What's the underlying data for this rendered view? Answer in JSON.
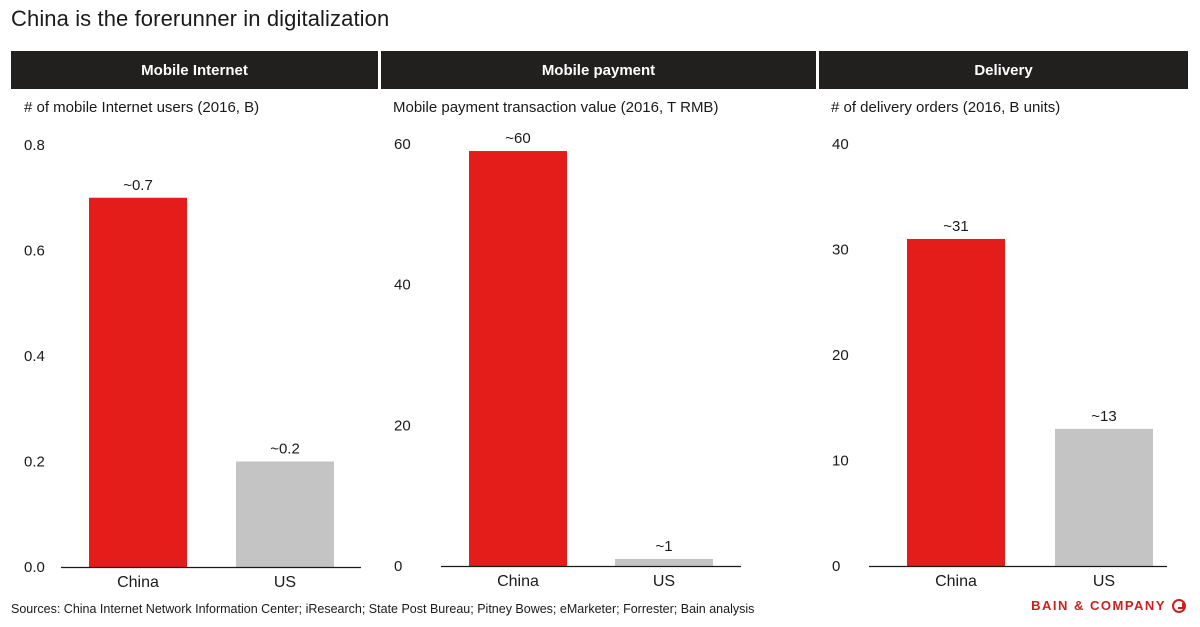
{
  "title": "China is the forerunner in digitalization",
  "footer": {
    "sources": "Sources: China Internet Network Information Center; iResearch; State Post Bureau; Pitney Bowes; eMarketer; Forrester; Bain analysis",
    "brand": "BAIN & COMPANY"
  },
  "colors": {
    "china": "#e41d1a",
    "us": "#c4c4c4",
    "header": "#221f1f",
    "brand": "#cc1f1f"
  },
  "chart_data": [
    {
      "type": "bar",
      "header": "Mobile Internet",
      "title": "# of mobile Internet users (2016, B)",
      "categories": [
        "China",
        "US"
      ],
      "values": [
        0.7,
        0.2
      ],
      "data_labels": [
        "~0.7",
        "~0.2"
      ],
      "ylim": [
        0,
        0.8
      ],
      "yticks": [
        0.0,
        0.2,
        0.4,
        0.6,
        0.8
      ],
      "ytick_labels": [
        "0.0",
        "0.2",
        "0.4",
        "0.6",
        "0.8"
      ],
      "grid": false
    },
    {
      "type": "bar",
      "header": "Mobile payment",
      "title": "Mobile payment transaction value (2016, T RMB)",
      "categories": [
        "China",
        "US"
      ],
      "values": [
        59,
        1
      ],
      "data_labels": [
        "~60",
        "~1"
      ],
      "ylim": [
        0,
        60
      ],
      "yticks": [
        0,
        20,
        40,
        60
      ],
      "ytick_labels": [
        "0",
        "20",
        "40",
        "60"
      ],
      "grid": false
    },
    {
      "type": "bar",
      "header": "Delivery",
      "title": "# of delivery orders (2016, B units)",
      "categories": [
        "China",
        "US"
      ],
      "values": [
        31,
        13
      ],
      "data_labels": [
        "~31",
        "~13"
      ],
      "ylim": [
        0,
        40
      ],
      "yticks": [
        0,
        10,
        20,
        30,
        40
      ],
      "ytick_labels": [
        "0",
        "10",
        "20",
        "30",
        "40"
      ],
      "grid": false
    }
  ]
}
